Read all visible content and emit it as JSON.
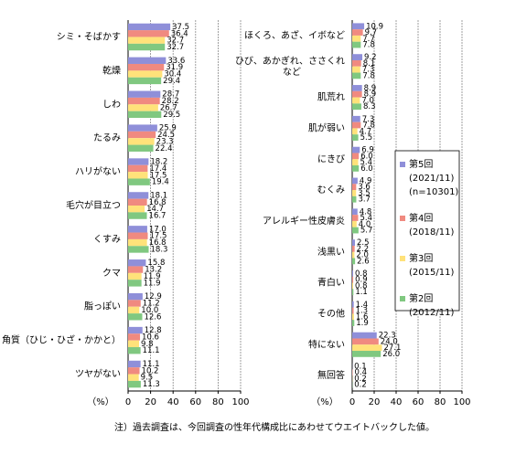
{
  "chart_data": [
    {
      "type": "bar",
      "orientation": "horizontal",
      "x_label": "（%）",
      "xlim": [
        0,
        100
      ],
      "xticks": [
        0,
        20,
        40,
        60,
        80,
        100
      ],
      "grid": true,
      "categories": [
        "シミ・そばかす",
        "乾燥",
        "しわ",
        "たるみ",
        "ハリがない",
        "毛穴が目立つ",
        "くすみ",
        "クマ",
        "脂っぽい",
        "角質（ひじ・ひざ・かかと）",
        "ツヤがない"
      ],
      "series": [
        {
          "color": "#8f8fd9",
          "values": [
            37.5,
            33.6,
            28.7,
            25.9,
            18.2,
            18.1,
            17.0,
            15.8,
            12.9,
            12.8,
            11.1
          ],
          "value_labels": [
            "37.5",
            "33.6",
            "28.7",
            "25.9",
            "18.2",
            "18.1",
            "17.0",
            "15.8",
            "12.9",
            "12.8",
            "11.1"
          ]
        },
        {
          "color": "#f08a80",
          "values": [
            36.4,
            31.9,
            28.2,
            24.5,
            17.4,
            16.8,
            17.5,
            13.2,
            11.2,
            10.6,
            10.2
          ],
          "value_labels": [
            "36.4",
            "31.9",
            "28.2",
            "24.5",
            "17.4",
            "16.8",
            "17.5",
            "13.2",
            "11.2",
            "10.6",
            "10.2"
          ]
        },
        {
          "color": "#ffe27a",
          "values": [
            32.7,
            30.4,
            26.7,
            23.3,
            17.5,
            14.7,
            16.8,
            11.9,
            10.0,
            9.8,
            9.5
          ],
          "value_labels": [
            "32.7",
            "30.4",
            "26.7",
            "23.3",
            "17.5",
            "14.7",
            "16.8",
            "11.9",
            "10.0",
            "9.8",
            "9.5"
          ]
        },
        {
          "color": "#80c880",
          "values": [
            32.7,
            29.4,
            29.5,
            22.4,
            19.4,
            16.7,
            18.3,
            11.9,
            12.6,
            11.1,
            11.3
          ],
          "value_labels": [
            "32.7",
            "29.4",
            "29.5",
            "22.4",
            "19.4",
            "16.7",
            "18.3",
            "11.9",
            "12.6",
            "11.1",
            "11.3"
          ]
        }
      ]
    },
    {
      "type": "bar",
      "orientation": "horizontal",
      "x_label": "（%）",
      "xlim": [
        0,
        100
      ],
      "xticks": [
        0,
        20,
        40,
        60,
        80,
        100
      ],
      "grid": true,
      "legend": "right",
      "categories": [
        "ほくろ、あざ、イボなど",
        [
          "ひび、あかぎれ、ささくれ",
          "など"
        ],
        "肌荒れ",
        "肌が弱い",
        "にきび",
        "むくみ",
        "アレルギー性皮膚炎",
        "浅黒い",
        "青白い",
        "その他",
        "特にない",
        "無回答"
      ],
      "series": [
        {
          "name": "第5回",
          "period": "(2021/11)",
          "n": "(n=10301)",
          "color": "#8f8fd9",
          "values": [
            10.9,
            9.2,
            8.9,
            7.3,
            6.9,
            4.9,
            4.8,
            2.5,
            0.8,
            1.4,
            22.3,
            0.1
          ],
          "value_labels": [
            "10.9",
            "9.2",
            "8.9",
            "7.3",
            "6.9",
            "4.9",
            "4.8",
            "2.5",
            "0.8",
            "1.4",
            "22.3",
            "0.1"
          ]
        },
        {
          "name": "第4回",
          "period": "(2018/11)",
          "color": "#f08a80",
          "values": [
            9.7,
            8.1,
            8.9,
            7.8,
            6.0,
            3.6,
            5.4,
            2.2,
            0.9,
            1.3,
            24.0,
            0.4
          ],
          "value_labels": [
            "9.7",
            "8.1",
            "8.9",
            "7.8",
            "6.0",
            "3.6",
            "5.4",
            "2.2",
            "0.9",
            "1.3",
            "24.0",
            "0.4"
          ]
        },
        {
          "name": "第3回",
          "period": "(2015/11)",
          "color": "#ffe27a",
          "values": [
            7.7,
            7.3,
            7.0,
            4.7,
            5.4,
            3.5,
            4.0,
            2.0,
            0.8,
            1.6,
            27.1,
            0.2
          ],
          "value_labels": [
            "7.7",
            "7.3",
            "7.0",
            "4.7",
            "5.4",
            "3.5",
            "4.0",
            "2.0",
            "0.8",
            "1.6",
            "27.1",
            "0.2"
          ]
        },
        {
          "name": "第2回",
          "period": "(2012/11)",
          "color": "#80c880",
          "values": [
            7.8,
            7.8,
            8.3,
            5.5,
            6.0,
            3.7,
            5.7,
            2.6,
            1.1,
            1.9,
            26.0,
            0.2
          ],
          "value_labels": [
            "7.8",
            "7.8",
            "8.3",
            "5.5",
            "6.0",
            "3.7",
            "5.7",
            "2.6",
            "1.1",
            "1.9",
            "26.0",
            "0.2"
          ]
        }
      ]
    }
  ],
  "footnote": "注）過去調査は、今回調査の性年代構成比にあわせてウエイトバックした値。"
}
